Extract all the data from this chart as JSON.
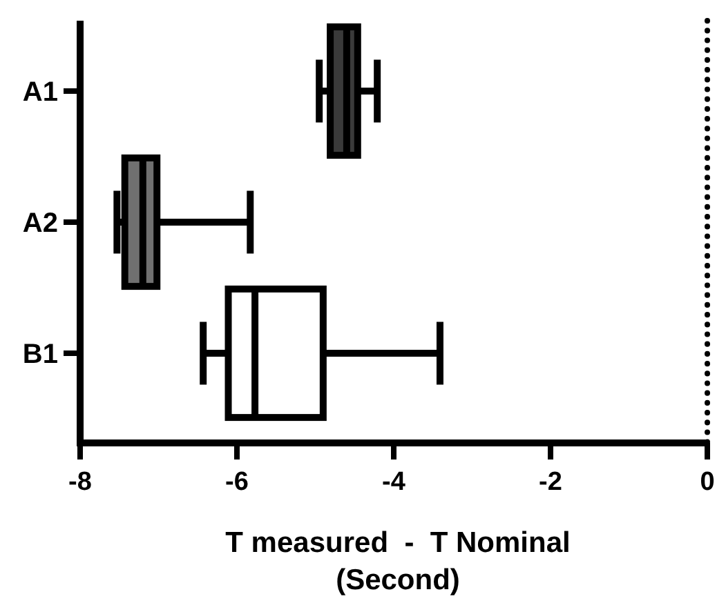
{
  "chart_data": {
    "type": "box",
    "orientation": "horizontal",
    "categories": [
      "A1",
      "A2",
      "B1"
    ],
    "boxes": [
      {
        "low": -4.95,
        "q1": -4.81,
        "median": -4.6,
        "q3": -4.46,
        "high": -4.21
      },
      {
        "low": -7.53,
        "q1": -7.43,
        "median": -7.2,
        "q3": -7.02,
        "high": -5.83
      },
      {
        "low": -6.43,
        "q1": -6.11,
        "median": -5.77,
        "q3": -4.9,
        "high": -3.41
      }
    ],
    "colors": [
      "#3a3a3a",
      "#707070",
      "#ffffff"
    ],
    "xlim": [
      -8,
      0
    ],
    "xticks": [
      -8,
      -6,
      -4,
      -2,
      0
    ],
    "xlabel": "T measured  -  T Nominal\n(Second)",
    "ref_lines": [
      {
        "axis": "x",
        "value": 0,
        "line_style": "dotted",
        "color": "#000000"
      }
    ],
    "grid": false
  }
}
